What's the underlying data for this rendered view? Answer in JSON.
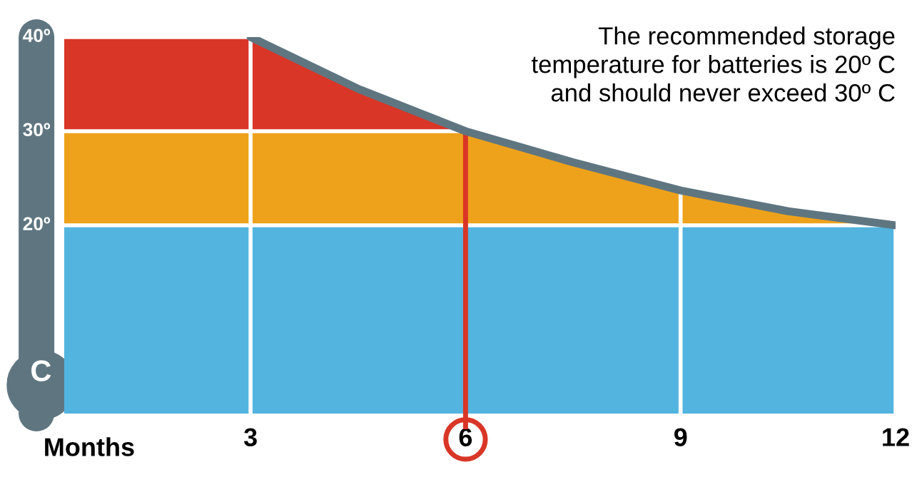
{
  "chart_data": {
    "type": "line",
    "xlabel": "Months",
    "ylabel": "C",
    "x": [
      3,
      4.5,
      6,
      7.5,
      9,
      10.5,
      12
    ],
    "series": [
      {
        "color": "#5f7681",
        "values": [
          40,
          34.5,
          30,
          26.7,
          23.7,
          21.5,
          20
        ]
      }
    ],
    "xlim": [
      0.4,
      12
    ],
    "ylim": [
      0,
      40
    ],
    "xticks": [
      3,
      6,
      9,
      12
    ],
    "yticks": [
      {
        "value": 20,
        "label": "20º"
      },
      {
        "value": 30,
        "label": "30º"
      },
      {
        "value": 40,
        "label": "40º"
      }
    ],
    "bands": [
      {
        "axis": "y",
        "from": 0,
        "to": 20,
        "color": "#52b4df"
      },
      {
        "axis": "y",
        "from": 20,
        "to": 30,
        "color": "#eea21b"
      },
      {
        "axis": "y",
        "from": 30,
        "to": 40,
        "color": "#d93627"
      }
    ],
    "ref_lines": [
      {
        "axis": "x",
        "value": 6,
        "color": "#d93627"
      }
    ],
    "grid": true,
    "line_style": "solid",
    "legend": false,
    "annotations": [
      "The recommended storage\ntemperature for batteries is 20º C\nand should never exceed 30º C"
    ]
  }
}
